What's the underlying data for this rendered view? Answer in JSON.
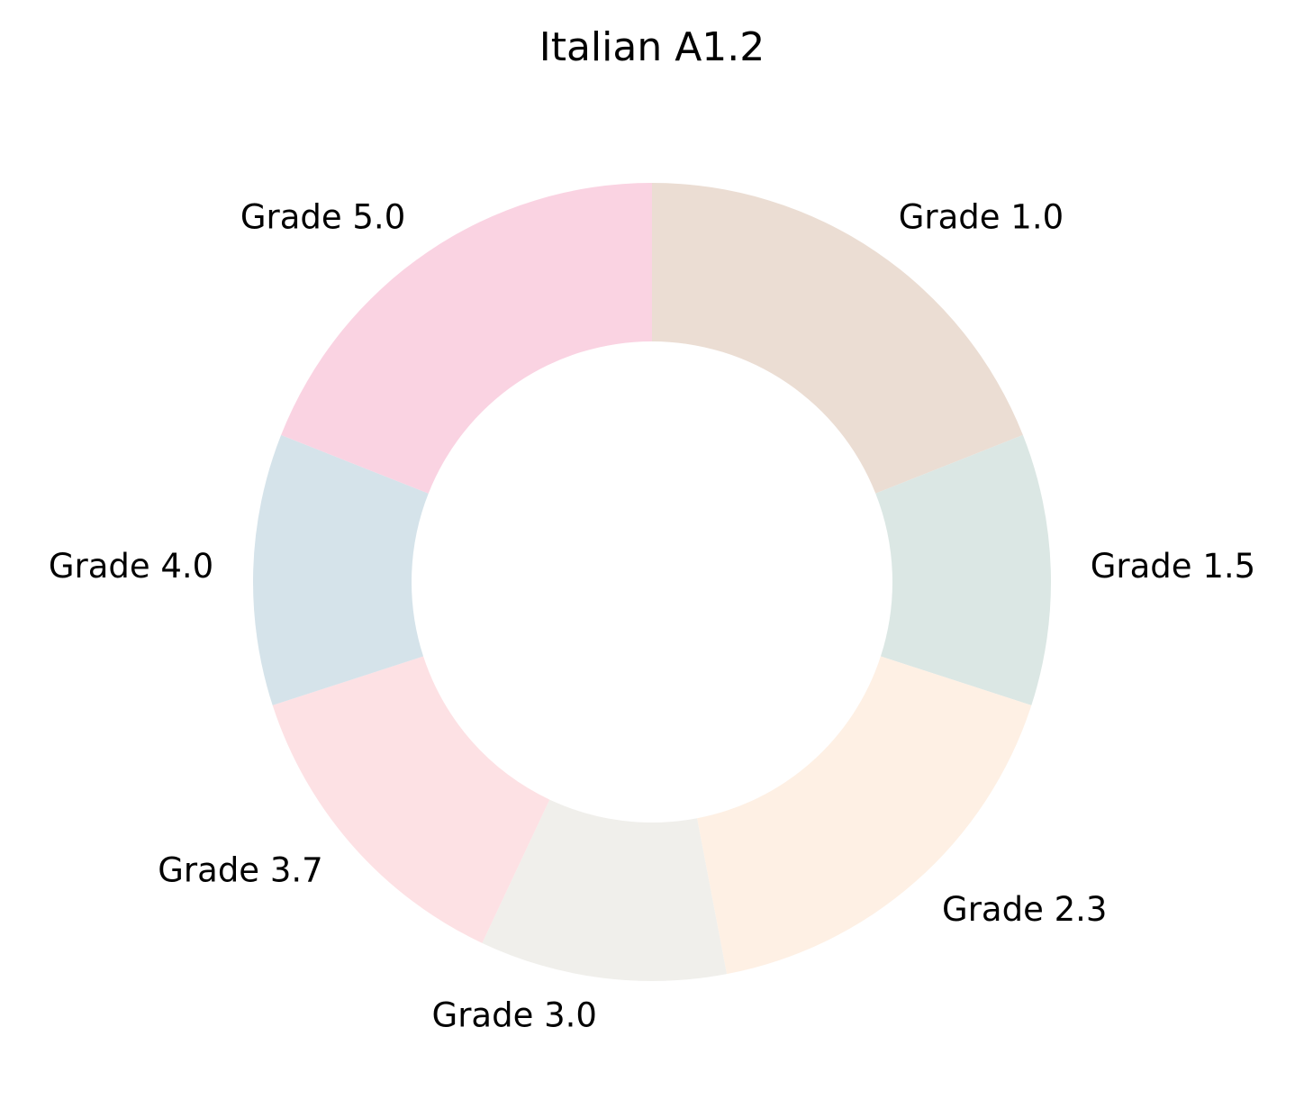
{
  "chart_data": {
    "type": "pie",
    "style": "donut",
    "title": "Italian A1.2",
    "start_angle_deg": 90,
    "direction": "clockwise",
    "categories": [
      "Grade 1.0",
      "Grade 1.5",
      "Grade 2.3",
      "Grade 3.0",
      "Grade 3.7",
      "Grade 4.0",
      "Grade 5.0"
    ],
    "values": [
      19.0,
      11.0,
      17.0,
      10.0,
      13.0,
      11.0,
      19.0
    ],
    "colors": [
      "#ebddd3",
      "#dbe7e4",
      "#fef0e4",
      "#f0efeb",
      "#fde1e4",
      "#d5e3ea",
      "#fad3e2"
    ],
    "legend": "none"
  }
}
